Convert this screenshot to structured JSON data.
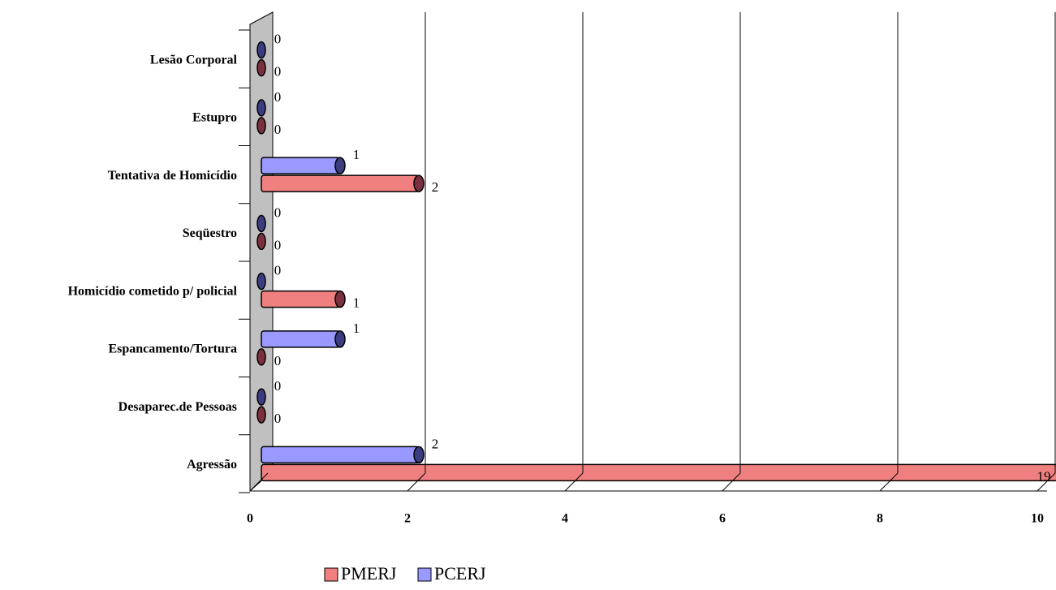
{
  "chart_data": {
    "type": "bar3d-horizontal",
    "categories": [
      "Lesão Corporal",
      "Estupro",
      "Tentativa de Homicídio",
      "Seqüestro",
      "Homicídio cometido p/ policial",
      "Espancamento/Tortura",
      "Desaparec.de Pessoas",
      "Agressão"
    ],
    "series": [
      {
        "name": "PMERJ",
        "color": "#f08080",
        "dark": "#7a3040",
        "values": [
          0,
          0,
          2,
          0,
          1,
          0,
          0,
          19
        ]
      },
      {
        "name": "PCERJ",
        "color": "#9999ff",
        "dark": "#3c3c80",
        "values": [
          0,
          0,
          1,
          0,
          0,
          1,
          0,
          2
        ]
      }
    ],
    "xlim": [
      0,
      10
    ],
    "xticks": [
      0,
      2,
      4,
      6,
      8,
      10
    ],
    "grid": true,
    "legend": "bottom"
  }
}
